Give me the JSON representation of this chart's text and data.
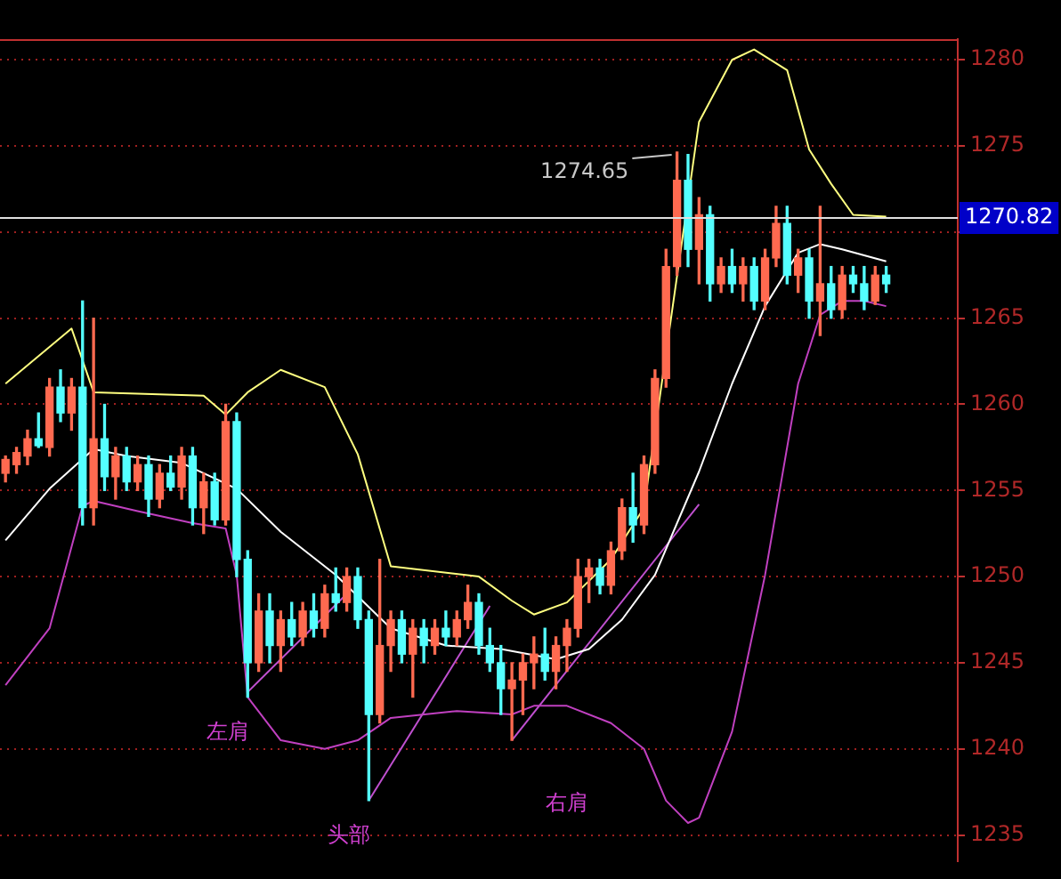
{
  "chart_data": {
    "type": "candlestick",
    "categories": [
      null,
      null,
      null,
      null,
      null,
      null,
      null,
      null,
      null,
      null,
      null,
      null,
      null,
      null,
      null,
      null,
      null,
      null,
      null,
      null,
      null,
      null,
      null,
      null,
      null,
      null,
      null,
      null,
      null,
      null,
      null,
      null,
      null,
      null,
      null,
      null,
      null,
      null,
      null,
      null,
      null,
      null,
      null,
      null,
      null,
      null,
      null,
      null,
      null,
      null,
      null,
      null,
      null,
      null,
      null,
      null,
      null,
      null,
      null,
      null,
      null,
      null,
      null,
      null,
      null,
      null,
      null,
      null,
      null,
      null,
      null,
      null,
      null,
      null,
      null,
      null,
      null,
      null,
      null,
      null,
      null,
      null,
      null,
      null,
      null,
      null,
      null
    ],
    "ohlc": [
      [
        1256,
        1257,
        1255.5,
        1256.8
      ],
      [
        1256.5,
        1257.5,
        1256,
        1257.2
      ],
      [
        1257,
        1258.5,
        1256.5,
        1258
      ],
      [
        1258,
        1259.5,
        1257.5,
        1257.6
      ],
      [
        1257.5,
        1261.5,
        1257,
        1261
      ],
      [
        1261,
        1262,
        1259,
        1259.5
      ],
      [
        1259.5,
        1261.5,
        1258.5,
        1261
      ],
      [
        1261,
        1266,
        1253,
        1254
      ],
      [
        1254,
        1265,
        1253,
        1258
      ],
      [
        1258,
        1260,
        1255,
        1255.8
      ],
      [
        1255.8,
        1257.5,
        1254.5,
        1257
      ],
      [
        1257,
        1257.5,
        1255,
        1255.5
      ],
      [
        1255.5,
        1257,
        1255,
        1256.5
      ],
      [
        1256.5,
        1257,
        1253.5,
        1254.5
      ],
      [
        1254.5,
        1256.5,
        1254,
        1256
      ],
      [
        1256,
        1257,
        1255,
        1255.2
      ],
      [
        1255.2,
        1257.5,
        1254.5,
        1257
      ],
      [
        1257,
        1257.5,
        1253,
        1254
      ],
      [
        1254,
        1256,
        1252.5,
        1255.5
      ],
      [
        1255.5,
        1256,
        1253,
        1253.3
      ],
      [
        1253.3,
        1260,
        1253,
        1259
      ],
      [
        1259,
        1259.5,
        1250,
        1251
      ],
      [
        1251,
        1251.5,
        1243,
        1245
      ],
      [
        1245,
        1249,
        1244.5,
        1248
      ],
      [
        1248,
        1249,
        1245,
        1246
      ],
      [
        1246,
        1248,
        1244.5,
        1247.5
      ],
      [
        1247.5,
        1248.5,
        1246,
        1246.5
      ],
      [
        1246.5,
        1248.5,
        1246,
        1248
      ],
      [
        1248,
        1249,
        1246.5,
        1247
      ],
      [
        1247,
        1249.5,
        1246.5,
        1249
      ],
      [
        1249,
        1250.5,
        1248,
        1248.5
      ],
      [
        1248.5,
        1250.5,
        1248,
        1250
      ],
      [
        1250,
        1250.5,
        1247,
        1247.5
      ],
      [
        1247.5,
        1248,
        1237,
        1242
      ],
      [
        1242,
        1251,
        1241.5,
        1246
      ],
      [
        1246,
        1248,
        1244.5,
        1247.5
      ],
      [
        1247.5,
        1248,
        1245,
        1245.5
      ],
      [
        1245.5,
        1247.5,
        1243,
        1247
      ],
      [
        1247,
        1247.5,
        1245,
        1246
      ],
      [
        1246,
        1247.5,
        1245.5,
        1247
      ],
      [
        1247,
        1248,
        1246,
        1246.5
      ],
      [
        1246.5,
        1248,
        1246,
        1247.5
      ],
      [
        1247.5,
        1249.5,
        1247,
        1248.5
      ],
      [
        1248.5,
        1249,
        1245.5,
        1246
      ],
      [
        1246,
        1247,
        1244.5,
        1245
      ],
      [
        1245,
        1246,
        1242,
        1243.5
      ],
      [
        1243.5,
        1245,
        1240.5,
        1244
      ],
      [
        1244,
        1245.5,
        1242,
        1245
      ],
      [
        1245,
        1246.5,
        1243.5,
        1245.5
      ],
      [
        1245.5,
        1247,
        1244,
        1244.5
      ],
      [
        1244.5,
        1246.5,
        1243.5,
        1246
      ],
      [
        1246,
        1247.5,
        1244.5,
        1247
      ],
      [
        1247,
        1251,
        1246.5,
        1250
      ],
      [
        1250,
        1251,
        1248.5,
        1250.5
      ],
      [
        1250.5,
        1251,
        1249,
        1249.5
      ],
      [
        1249.5,
        1252,
        1249,
        1251.5
      ],
      [
        1251.5,
        1254.5,
        1251,
        1254
      ],
      [
        1254,
        1256,
        1252,
        1253
      ],
      [
        1253,
        1257,
        1252.5,
        1256.5
      ],
      [
        1256.5,
        1262,
        1256,
        1261.5
      ],
      [
        1261.5,
        1269,
        1261,
        1268
      ],
      [
        1268,
        1274.65,
        1267.5,
        1273
      ],
      [
        1273,
        1274.5,
        1268,
        1269
      ],
      [
        1269,
        1272,
        1267,
        1271
      ],
      [
        1271,
        1271.5,
        1266,
        1267
      ],
      [
        1267,
        1268.5,
        1266.5,
        1268
      ],
      [
        1268,
        1269,
        1266.5,
        1267
      ],
      [
        1267,
        1268.5,
        1266,
        1268
      ],
      [
        1268,
        1268.5,
        1265.5,
        1266
      ],
      [
        1266,
        1269,
        1265.5,
        1268.5
      ],
      [
        1268.5,
        1271.5,
        1268,
        1270.5
      ],
      [
        1270.5,
        1271.5,
        1267,
        1267.5
      ],
      [
        1267.5,
        1269,
        1266.5,
        1268.5
      ],
      [
        1268.5,
        1269,
        1265,
        1266
      ],
      [
        1266,
        1271.5,
        1264,
        1267
      ],
      [
        1267,
        1268,
        1265,
        1265.5
      ],
      [
        1265.5,
        1268,
        1265,
        1267.5
      ],
      [
        1267.5,
        1268,
        1266.5,
        1267
      ],
      [
        1267,
        1268,
        1265.5,
        1266
      ],
      [
        1266,
        1268,
        1265.8,
        1267.5
      ],
      [
        1267.5,
        1268,
        1266.5,
        1267
      ],
      null,
      null,
      null,
      null,
      null,
      null
    ],
    "colors": [
      "#ff6a50",
      "#ff6a50",
      "#ff6a50",
      "#54ffff",
      "#ff6a50",
      "#54ffff",
      "#ff6a50",
      "#54ffff",
      "#ff6a50",
      "#54ffff",
      "#ff6a50",
      "#54ffff",
      "#ff6a50",
      "#54ffff",
      "#ff6a50",
      "#54ffff",
      "#ff6a50",
      "#54ffff",
      "#ff6a50",
      "#54ffff",
      "#ff6a50",
      "#54ffff",
      "#54ffff",
      "#ff6a50",
      "#54ffff",
      "#ff6a50",
      "#54ffff",
      "#ff6a50",
      "#54ffff",
      "#ff6a50",
      "#54ffff",
      "#ff6a50",
      "#54ffff",
      "#54ffff",
      "#ff6a50",
      "#ff6a50",
      "#54ffff",
      "#ff6a50",
      "#54ffff",
      "#ff6a50",
      "#54ffff",
      "#ff6a50",
      "#ff6a50",
      "#54ffff",
      "#54ffff",
      "#54ffff",
      "#ff6a50",
      "#ff6a50",
      "#ff6a50",
      "#54ffff",
      "#ff6a50",
      "#ff6a50",
      "#ff6a50",
      "#ff6a50",
      "#54ffff",
      "#ff6a50",
      "#ff6a50",
      "#54ffff",
      "#ff6a50",
      "#ff6a50",
      "#ff6a50",
      "#ff6a50",
      "#54ffff",
      "#ff6a50",
      "#54ffff",
      "#ff6a50",
      "#54ffff",
      "#ff6a50",
      "#54ffff",
      "#ff6a50",
      "#ff6a50",
      "#54ffff",
      "#ff6a50",
      "#54ffff",
      "#ff6a50",
      "#54ffff",
      "#ff6a50",
      "#54ffff",
      "#54ffff",
      "#ff6a50",
      "#54ffff",
      null,
      null,
      null,
      null,
      null,
      null
    ],
    "series": [
      {
        "type": "line",
        "color": "#ffff80",
        "values": [
          1261.2,
          null,
          null,
          null,
          null,
          null,
          1264.4,
          null,
          1260.7,
          null,
          null,
          null,
          null,
          null,
          null,
          null,
          null,
          null,
          1260.5,
          null,
          1259.4,
          null,
          1260.7,
          null,
          null,
          1262,
          null,
          null,
          null,
          1261,
          null,
          null,
          1257.1,
          null,
          null,
          1250.6,
          null,
          null,
          null,
          null,
          null,
          null,
          null,
          1250,
          null,
          null,
          1248.6,
          null,
          1247.8,
          null,
          null,
          1248.5,
          null,
          null,
          null,
          1251,
          null,
          null,
          1254,
          null,
          null,
          null,
          null,
          1276.4,
          null,
          null,
          1280,
          null,
          1280.6,
          null,
          null,
          1279.4,
          null,
          1274.8,
          null,
          1272.8,
          null,
          1271,
          null,
          null,
          1270.9,
          null,
          null,
          null,
          null,
          null,
          null
        ]
      },
      {
        "type": "line",
        "color": "#ffffff",
        "values": [
          1252.1,
          null,
          null,
          null,
          1255.1,
          null,
          null,
          null,
          1257.4,
          null,
          null,
          1257,
          null,
          null,
          null,
          null,
          1256.6,
          null,
          null,
          null,
          null,
          1255.1,
          null,
          null,
          null,
          1252.6,
          null,
          null,
          null,
          null,
          1250.1,
          null,
          null,
          null,
          null,
          1247,
          null,
          null,
          null,
          null,
          1246,
          null,
          null,
          null,
          null,
          1245.8,
          null,
          null,
          null,
          null,
          1245.2,
          null,
          null,
          1245.8,
          null,
          null,
          1247.5,
          null,
          null,
          1250.1,
          null,
          null,
          null,
          1256.1,
          null,
          null,
          1261.2,
          null,
          null,
          1265.7,
          null,
          null,
          1268.8,
          null,
          1269.3,
          null,
          1269,
          null,
          null,
          null,
          1268.3,
          null,
          null,
          null,
          null,
          null,
          null
        ]
      },
      {
        "type": "line",
        "color": "#c040c0",
        "values": [
          1243.7,
          null,
          null,
          null,
          1247,
          null,
          null,
          1254.1,
          1254.4,
          null,
          null,
          null,
          1253.8,
          null,
          null,
          null,
          null,
          1253.1,
          null,
          null,
          1252.8,
          1250.1,
          1243,
          null,
          null,
          1240.5,
          null,
          null,
          null,
          1240,
          null,
          null,
          1240.5,
          null,
          null,
          1241.8,
          null,
          null,
          null,
          null,
          null,
          1242.2,
          null,
          null,
          null,
          null,
          1242,
          null,
          1242.5,
          null,
          null,
          1242.5,
          null,
          null,
          null,
          1241.5,
          null,
          null,
          1240,
          null,
          1237,
          null,
          1235.7,
          1236,
          null,
          null,
          1241,
          null,
          null,
          1250.1,
          null,
          null,
          1261.2,
          null,
          1265.2,
          null,
          1266,
          null,
          1266,
          null,
          1265.7,
          null,
          null,
          null,
          null,
          null,
          null
        ]
      },
      {
        "type": "line",
        "color": "#c050d0",
        "values": [
          null,
          null,
          null,
          null,
          null,
          null,
          null,
          null,
          null,
          null,
          null,
          null,
          null,
          null,
          null,
          null,
          null,
          null,
          null,
          null,
          null,
          null,
          1243.3,
          null,
          null,
          null,
          null,
          null,
          null,
          null,
          null,
          1249,
          null,
          null,
          null,
          null,
          null,
          null,
          null,
          null,
          null,
          null,
          null,
          null,
          null,
          null,
          null,
          null,
          null,
          null,
          null,
          null,
          null,
          null,
          null,
          null,
          null,
          null,
          null,
          null,
          null,
          null,
          null,
          null,
          null,
          null,
          null,
          null,
          null,
          null,
          null,
          null,
          null,
          null,
          null,
          null,
          null,
          null,
          null,
          null,
          null,
          null,
          null,
          null,
          null,
          null,
          null
        ]
      },
      {
        "type": "line",
        "color": "#c050d0",
        "values": [
          null,
          null,
          null,
          null,
          null,
          null,
          null,
          null,
          null,
          null,
          null,
          null,
          null,
          null,
          null,
          null,
          null,
          null,
          null,
          null,
          null,
          null,
          null,
          null,
          null,
          null,
          null,
          null,
          null,
          null,
          null,
          null,
          null,
          1237,
          null,
          null,
          null,
          null,
          null,
          null,
          null,
          null,
          null,
          null,
          1248.3,
          null,
          null,
          null,
          null,
          null,
          null,
          null,
          null,
          null,
          null,
          null,
          null,
          null,
          null,
          null,
          null,
          null,
          null,
          null,
          null,
          null,
          null,
          null,
          null,
          null,
          null,
          null,
          null,
          null,
          null,
          null,
          null,
          null,
          null,
          null,
          null,
          null,
          null,
          null,
          null,
          null,
          null
        ]
      },
      {
        "type": "line",
        "color": "#c050d0",
        "values": [
          null,
          null,
          null,
          null,
          null,
          null,
          null,
          null,
          null,
          null,
          null,
          null,
          null,
          null,
          null,
          null,
          null,
          null,
          null,
          null,
          null,
          null,
          null,
          null,
          null,
          null,
          null,
          null,
          null,
          null,
          null,
          null,
          null,
          null,
          null,
          null,
          null,
          null,
          null,
          null,
          null,
          null,
          null,
          null,
          null,
          null,
          1240.5,
          null,
          null,
          null,
          null,
          null,
          null,
          null,
          null,
          null,
          null,
          null,
          null,
          null,
          null,
          null,
          null,
          1254.2,
          null,
          null,
          null,
          null,
          null,
          null,
          null,
          null,
          null,
          null,
          null,
          null,
          null,
          null,
          null,
          null,
          null,
          null,
          null,
          null,
          null,
          null,
          null
        ]
      }
    ],
    "ylim": [
      1233.5,
      1281.2
    ],
    "yticks": [
      1235,
      1240,
      1245,
      1250,
      1255,
      1260,
      1265,
      {
        "value": 1270,
        "label": null
      },
      1275,
      1280
    ],
    "grid": "y",
    "tick_labels": "y",
    "legend": false,
    "ref_lines": [
      {
        "axis": "y",
        "value": 1270.82,
        "label": "1270.82",
        "color": "#e0e0e0"
      }
    ],
    "annotations": [
      "1274.65",
      "左肩",
      "头部",
      "右肩"
    ]
  }
}
